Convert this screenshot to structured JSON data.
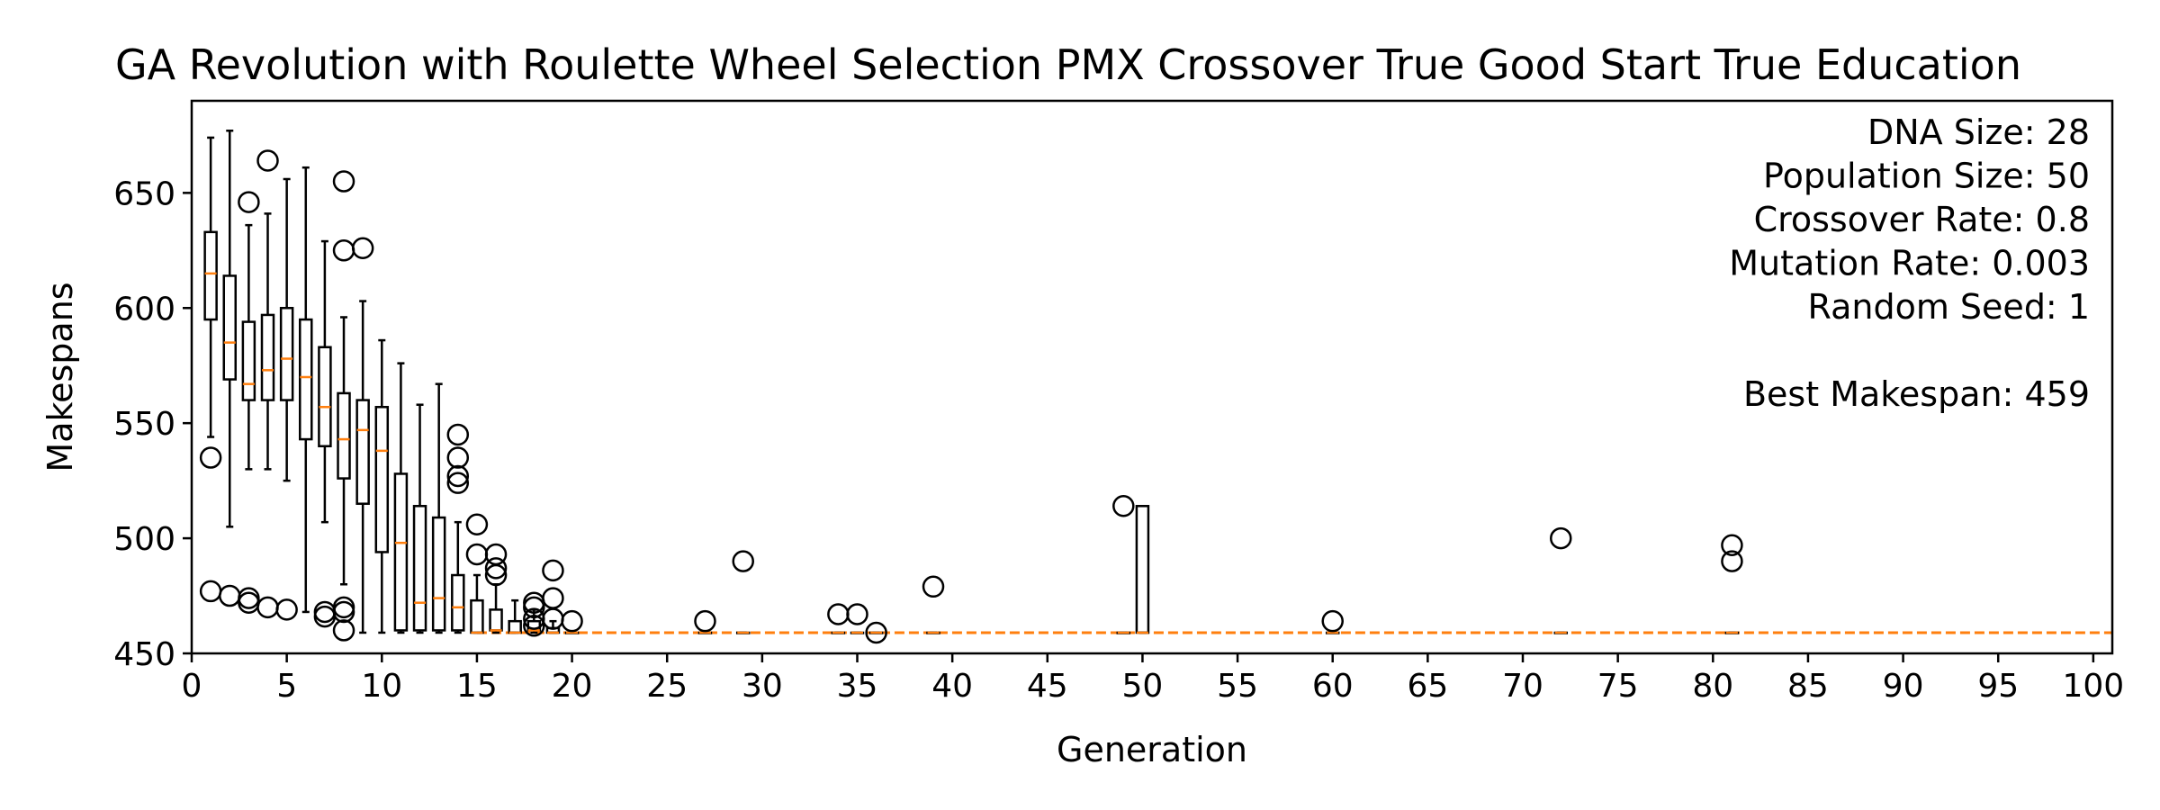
{
  "chart_data": {
    "type": "box",
    "title": "GA Revolution with Roulette Wheel Selection PMX Crossover True Good Start True Education",
    "xlabel": "Generation",
    "ylabel": "Makespans",
    "xlim": [
      0,
      101
    ],
    "ylim": [
      450,
      690
    ],
    "xticks": [
      "0",
      "5",
      "10",
      "15",
      "20",
      "25",
      "30",
      "35",
      "40",
      "45",
      "50",
      "55",
      "60",
      "65",
      "70",
      "75",
      "80",
      "85",
      "90",
      "95",
      "100"
    ],
    "yticks": [
      "450",
      "500",
      "550",
      "600",
      "650"
    ],
    "best_line": {
      "value": 459,
      "from_generation": 15,
      "to_generation": 101,
      "color": "#ff7f0e"
    },
    "info_lines": [
      "DNA Size: 28",
      "Population Size: 50",
      "Crossover Rate: 0.8",
      "Mutation Rate: 0.003",
      "Random Seed: 1",
      "",
      "Best Makespan: 459"
    ],
    "boxes": [
      {
        "g": 1,
        "wlo": 544,
        "q1": 595,
        "med": 615,
        "q3": 633,
        "whi": 674,
        "fliers": [
          535,
          477
        ]
      },
      {
        "g": 2,
        "wlo": 505,
        "q1": 569,
        "med": 585,
        "q3": 614,
        "whi": 677,
        "fliers": [
          475
        ]
      },
      {
        "g": 3,
        "wlo": 530,
        "q1": 560,
        "med": 567,
        "q3": 594,
        "whi": 636,
        "fliers": [
          646,
          474,
          472
        ]
      },
      {
        "g": 4,
        "wlo": 530,
        "q1": 560,
        "med": 573,
        "q3": 597,
        "whi": 641,
        "fliers": [
          664,
          470
        ]
      },
      {
        "g": 5,
        "wlo": 525,
        "q1": 560,
        "med": 578,
        "q3": 600,
        "whi": 656,
        "fliers": [
          469
        ]
      },
      {
        "g": 6,
        "wlo": 468,
        "q1": 543,
        "med": 570,
        "q3": 595,
        "whi": 661,
        "fliers": []
      },
      {
        "g": 7,
        "wlo": 507,
        "q1": 540,
        "med": 557,
        "q3": 583,
        "whi": 629,
        "fliers": [
          468,
          466
        ]
      },
      {
        "g": 8,
        "wlo": 480,
        "q1": 526,
        "med": 543,
        "q3": 563,
        "whi": 596,
        "fliers": [
          655,
          625,
          470,
          468,
          460
        ]
      },
      {
        "g": 9,
        "wlo": 459,
        "q1": 515,
        "med": 547,
        "q3": 560,
        "whi": 603,
        "fliers": [
          626
        ]
      },
      {
        "g": 10,
        "wlo": 459,
        "q1": 494,
        "med": 538,
        "q3": 557,
        "whi": 586,
        "fliers": []
      },
      {
        "g": 11,
        "wlo": 459,
        "q1": 460,
        "med": 498,
        "q3": 528,
        "whi": 576,
        "fliers": []
      },
      {
        "g": 12,
        "wlo": 459,
        "q1": 460,
        "med": 472,
        "q3": 514,
        "whi": 558,
        "fliers": []
      },
      {
        "g": 13,
        "wlo": 459,
        "q1": 460,
        "med": 474,
        "q3": 509,
        "whi": 567,
        "fliers": []
      },
      {
        "g": 14,
        "wlo": 459,
        "q1": 460,
        "med": 470,
        "q3": 484,
        "whi": 507,
        "fliers": [
          545,
          535,
          527,
          524
        ]
      },
      {
        "g": 15,
        "wlo": 459,
        "q1": 459,
        "med": 459,
        "q3": 473,
        "whi": 484,
        "fliers": [
          506,
          493
        ]
      },
      {
        "g": 16,
        "wlo": 459,
        "q1": 460,
        "med": 460,
        "q3": 469,
        "whi": 480,
        "fliers": [
          493,
          487,
          484
        ]
      },
      {
        "g": 17,
        "wlo": 459,
        "q1": 459,
        "med": 459,
        "q3": 464,
        "whi": 473,
        "fliers": []
      },
      {
        "g": 18,
        "wlo": 459,
        "q1": 460,
        "med": 460,
        "q3": 464,
        "whi": 469,
        "fliers": [
          472,
          470,
          465,
          462
        ]
      },
      {
        "g": 19,
        "wlo": 459,
        "q1": 459,
        "med": 459,
        "q3": 461,
        "whi": 464,
        "fliers": [
          486,
          474,
          465
        ]
      },
      {
        "g": 20,
        "wlo": 459,
        "q1": 459,
        "med": 459,
        "q3": 459,
        "whi": 459,
        "fliers": [
          464
        ]
      },
      {
        "g": 27,
        "wlo": 459,
        "q1": 459,
        "med": 459,
        "q3": 459,
        "whi": 459,
        "fliers": [
          464
        ]
      },
      {
        "g": 29,
        "wlo": 459,
        "q1": 459,
        "med": 459,
        "q3": 459,
        "whi": 459,
        "fliers": [
          490
        ]
      },
      {
        "g": 34,
        "wlo": 459,
        "q1": 459,
        "med": 459,
        "q3": 459,
        "whi": 459,
        "fliers": [
          467
        ]
      },
      {
        "g": 35,
        "wlo": 459,
        "q1": 459,
        "med": 459,
        "q3": 459,
        "whi": 459,
        "fliers": [
          467
        ]
      },
      {
        "g": 36,
        "wlo": 459,
        "q1": 459,
        "med": 459,
        "q3": 459,
        "whi": 459,
        "fliers": [
          459
        ]
      },
      {
        "g": 39,
        "wlo": 459,
        "q1": 459,
        "med": 459,
        "q3": 459,
        "whi": 459,
        "fliers": [
          479
        ]
      },
      {
        "g": 49,
        "wlo": 459,
        "q1": 459,
        "med": 459,
        "q3": 459,
        "whi": 459,
        "fliers": [
          514
        ]
      },
      {
        "g": 50,
        "wlo": 459,
        "q1": 459,
        "med": 459,
        "q3": 514,
        "whi": 514,
        "fliers": []
      },
      {
        "g": 60,
        "wlo": 459,
        "q1": 459,
        "med": 459,
        "q3": 459,
        "whi": 459,
        "fliers": [
          464
        ]
      },
      {
        "g": 72,
        "wlo": 459,
        "q1": 459,
        "med": 459,
        "q3": 459,
        "whi": 459,
        "fliers": [
          500
        ]
      },
      {
        "g": 81,
        "wlo": 459,
        "q1": 459,
        "med": 459,
        "q3": 459,
        "whi": 459,
        "fliers": [
          497,
          490
        ]
      }
    ]
  }
}
